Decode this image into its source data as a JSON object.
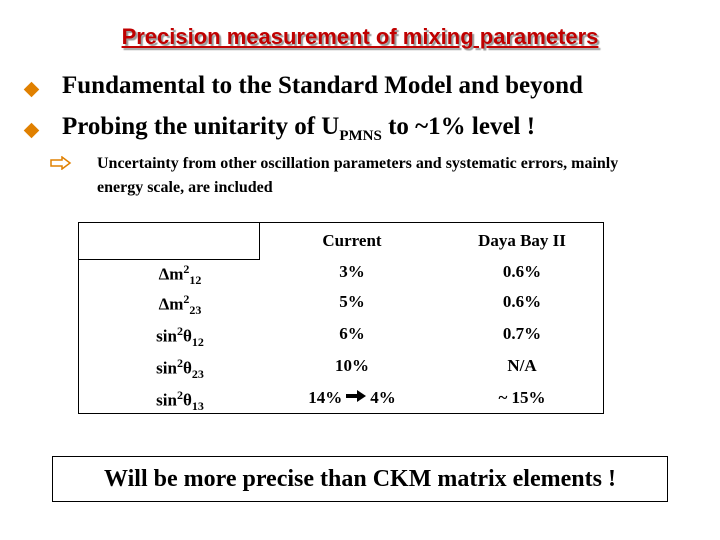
{
  "title": "Precision measurement of mixing parameters",
  "bullets": [
    {
      "text": "Fundamental to the Standard Model and beyond"
    },
    {
      "parts": [
        {
          "t": "Probing the unitarity of U"
        },
        {
          "sub": "PMNS"
        },
        {
          "t": " to ~1% level  !"
        }
      ]
    }
  ],
  "sub_bullet": "Uncertainty from other oscillation parameters and systematic errors, mainly energy scale, are included",
  "table": {
    "header": [
      "Current",
      "Daya Bay II"
    ],
    "rows": [
      {
        "param": [
          {
            "t": "Δm"
          },
          {
            "sup": "2"
          },
          {
            "sub": "12"
          }
        ],
        "current": [
          "3%"
        ],
        "future": "0.6%"
      },
      {
        "param": [
          {
            "t": "Δm"
          },
          {
            "sup": "2"
          },
          {
            "sub": "23"
          }
        ],
        "current": [
          "5%"
        ],
        "future": "0.6%"
      },
      {
        "param": [
          {
            "t": "sin"
          },
          {
            "sup": "2"
          },
          {
            "t": "θ"
          },
          {
            "sub": "12"
          }
        ],
        "current": [
          "6%"
        ],
        "future": "0.7%"
      },
      {
        "param": [
          {
            "t": "sin"
          },
          {
            "sup": "2"
          },
          {
            "t": "θ"
          },
          {
            "sub": "23"
          }
        ],
        "current": [
          "10%"
        ],
        "future": "N/A"
      },
      {
        "param": [
          {
            "t": "sin"
          },
          {
            "sup": "2"
          },
          {
            "t": "θ"
          },
          {
            "sub": "13"
          }
        ],
        "current": [
          "14%",
          "4%"
        ],
        "future": "~ 15%"
      }
    ]
  },
  "footer": "Will be more precise than CKM matrix elements !"
}
